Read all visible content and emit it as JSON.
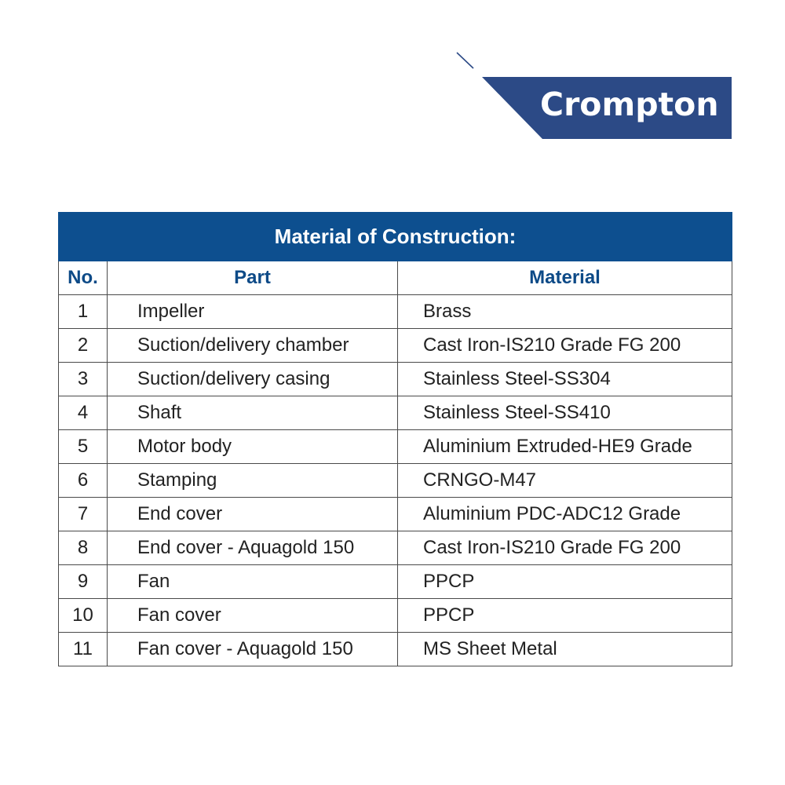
{
  "brand": {
    "name": "Crompton",
    "bg_color": "#2c4a86",
    "text_color": "#ffffff"
  },
  "table": {
    "title": "Material of Construction:",
    "header_bg": "#0d4f8f",
    "headers": [
      "No.",
      "Part",
      "Material"
    ],
    "rows": [
      {
        "no": "1",
        "part": "Impeller",
        "material": "Brass"
      },
      {
        "no": "2",
        "part": "Suction/delivery chamber",
        "material": "Cast Iron-IS210 Grade FG 200"
      },
      {
        "no": "3",
        "part": "Suction/delivery casing",
        "material": "Stainless Steel-SS304"
      },
      {
        "no": "4",
        "part": "Shaft",
        "material": "Stainless Steel-SS410"
      },
      {
        "no": "5",
        "part": "Motor body",
        "material": "Aluminium Extruded-HE9 Grade"
      },
      {
        "no": "6",
        "part": "Stamping",
        "material": "CRNGO-M47"
      },
      {
        "no": "7",
        "part": "End cover",
        "material": "Aluminium PDC-ADC12 Grade"
      },
      {
        "no": "8",
        "part": "End cover - Aquagold 150",
        "material": "Cast Iron-IS210 Grade FG 200"
      },
      {
        "no": "9",
        "part": "Fan",
        "material": "PPCP"
      },
      {
        "no": "10",
        "part": "Fan cover",
        "material": "PPCP"
      },
      {
        "no": "11",
        "part": "Fan cover - Aquagold 150",
        "material": "MS Sheet Metal"
      }
    ]
  }
}
